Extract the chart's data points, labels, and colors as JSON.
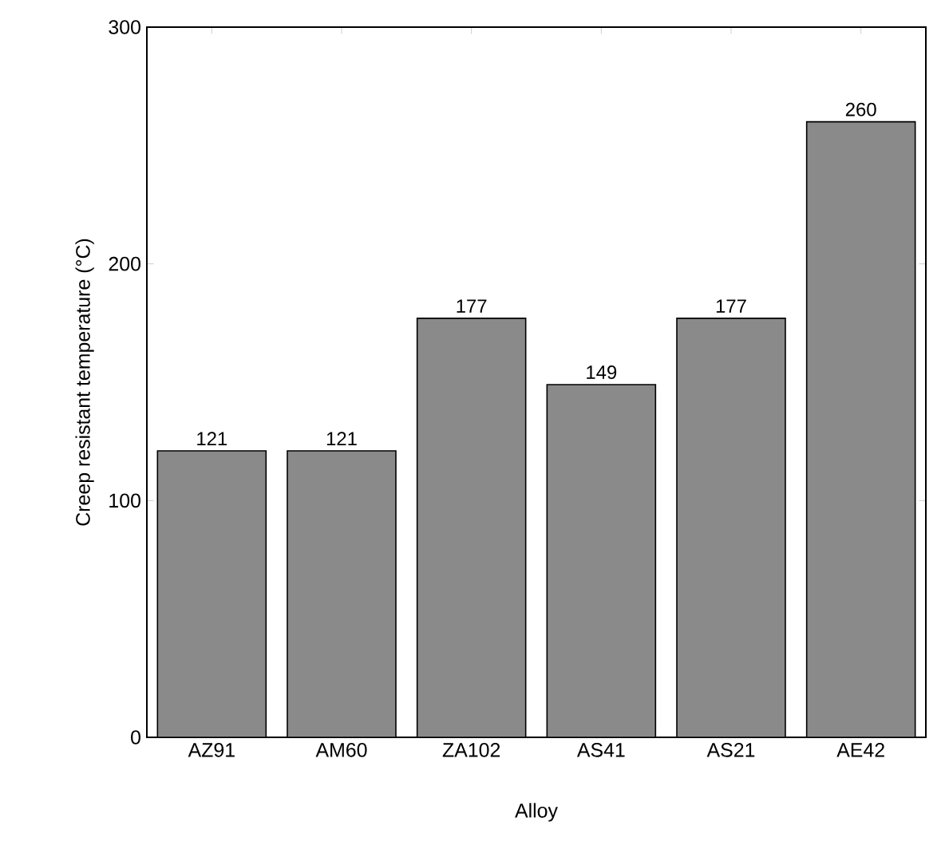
{
  "chart_data": {
    "type": "bar",
    "xlabel": "Alloy",
    "ylabel": "Creep resistant temperature (°C)",
    "categories": [
      "AZ91",
      "AM60",
      "ZA102",
      "AS41",
      "AS21",
      "AE42"
    ],
    "values": [
      121,
      121,
      177,
      149,
      177,
      260
    ],
    "color": "#8a8a8a",
    "ylim": [
      0,
      300
    ],
    "yticks": [
      0,
      100,
      200,
      300
    ],
    "data_labels": true
  }
}
